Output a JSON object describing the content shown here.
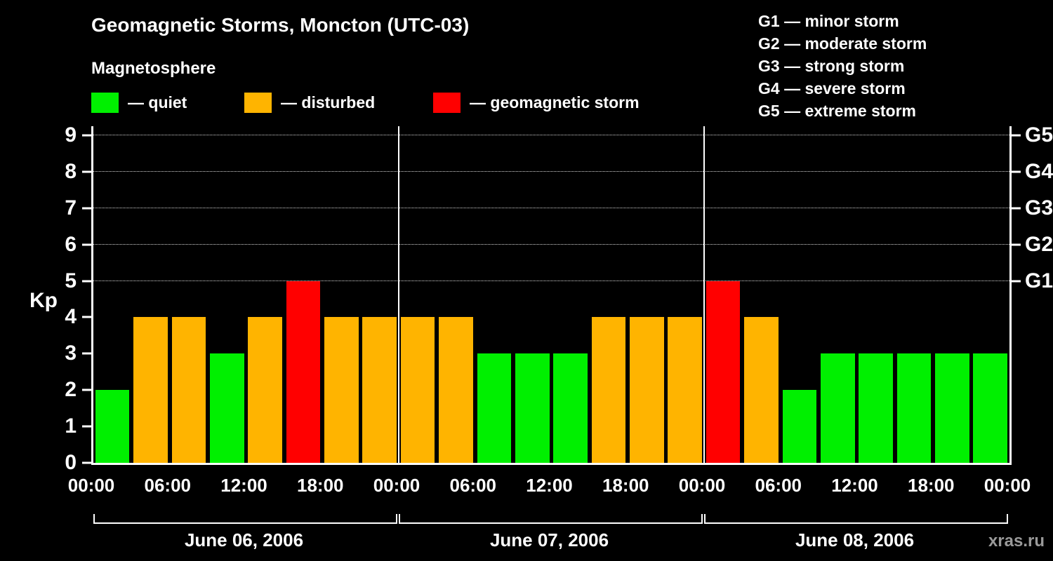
{
  "title": "Geomagnetic Storms, Moncton (UTC-03)",
  "subtitle": "Magnetosphere",
  "watermark": "xras.ru",
  "storm_scale": [
    "G1 — minor storm",
    "G2 — moderate storm",
    "G3 — strong storm",
    "G4 — severe storm",
    "G5 — extreme storm"
  ],
  "legend": [
    {
      "name": "quiet",
      "label": "— quiet",
      "color": "#00f000"
    },
    {
      "name": "disturbed",
      "label": "— disturbed",
      "color": "#ffb400"
    },
    {
      "name": "storm",
      "label": "— geomagnetic storm",
      "color": "#ff0000"
    }
  ],
  "chart_data": {
    "type": "bar",
    "title": "Geomagnetic Storms, Moncton (UTC-03)",
    "ylabel": "Kp",
    "ylim": [
      0,
      9
    ],
    "kp_axis_max": 9.25,
    "grid_on": true,
    "grid_kp": [
      5,
      6,
      7,
      8,
      9
    ],
    "yticks_left": [
      0,
      1,
      2,
      3,
      4,
      5,
      6,
      7,
      8,
      9
    ],
    "yticks_right": [
      {
        "kp": 5,
        "label": "G1"
      },
      {
        "kp": 6,
        "label": "G2"
      },
      {
        "kp": 7,
        "label": "G3"
      },
      {
        "kp": 8,
        "label": "G4"
      },
      {
        "kp": 9,
        "label": "G5"
      }
    ],
    "thresholds": {
      "quiet_kp_max": 3,
      "disturbed_kp_max": 4
    },
    "bin_hours": 3,
    "x_tick_labels": [
      "00:00",
      "06:00",
      "12:00",
      "18:00",
      "00:00",
      "06:00",
      "12:00",
      "18:00",
      "00:00",
      "06:00",
      "12:00",
      "18:00",
      "00:00"
    ],
    "days": [
      {
        "date": "June 06, 2006",
        "values": [
          2,
          4,
          4,
          3,
          4,
          5,
          4,
          4
        ]
      },
      {
        "date": "June 07, 2006",
        "values": [
          4,
          4,
          3,
          3,
          3,
          4,
          4,
          4
        ]
      },
      {
        "date": "June 08, 2006",
        "values": [
          5,
          4,
          2,
          3,
          3,
          3,
          3,
          3
        ]
      }
    ]
  }
}
